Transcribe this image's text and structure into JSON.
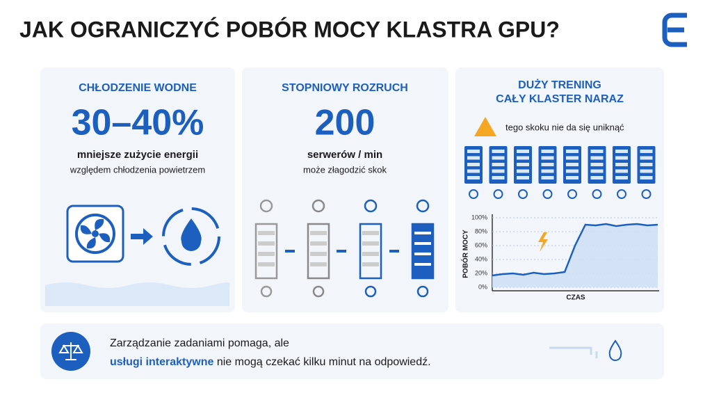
{
  "header": {
    "title": "JAK OGRANICZYĆ POBÓR MOCY KLASTRA GPU?"
  },
  "panels": [
    {
      "title": "CHŁODZENIE WODNE",
      "big": "30–40%",
      "line1": "mniejsze zużycie energii",
      "line2": "względem chłodzenia powietrzem"
    },
    {
      "title": "STOPNIOWY ROZRUCH",
      "big": "200",
      "line1": "serwerów / min",
      "line2": "może złagodzić skok"
    },
    {
      "title_lines": [
        "DUŻY TRENING",
        "CAŁY KLASTER NARAZ"
      ],
      "warning": "tego skoku nie da się uniknąć"
    }
  ],
  "footer": {
    "line1": "Zarządzanie zadaniami pomaga, ale",
    "highlight": "usługi interaktywne",
    "line2_rest": " nie mogą czekać kilku minut na odpowiedź."
  },
  "chart_data": {
    "type": "area",
    "ylabel": "POBÓR MOCY",
    "xlabel": "CZAS",
    "color": "#1d5fbf",
    "categories": [
      null,
      null,
      null,
      null,
      null,
      null,
      null,
      null,
      null,
      null,
      null,
      null,
      null,
      null,
      null,
      null,
      null
    ],
    "values": [
      17,
      19,
      20,
      18,
      21,
      19,
      20,
      22,
      60,
      90,
      89,
      91,
      88,
      90,
      91,
      89,
      90
    ],
    "ylim": [
      0,
      100
    ],
    "yticks": [
      {
        "value": 0,
        "label": "0%"
      },
      {
        "value": 20,
        "label": "20%"
      },
      {
        "value": 40,
        "label": "40%"
      },
      {
        "value": 60,
        "label": "60%"
      },
      {
        "value": 80,
        "label": "80%"
      },
      {
        "value": 100,
        "label": "100%"
      }
    ],
    "grid": true
  }
}
